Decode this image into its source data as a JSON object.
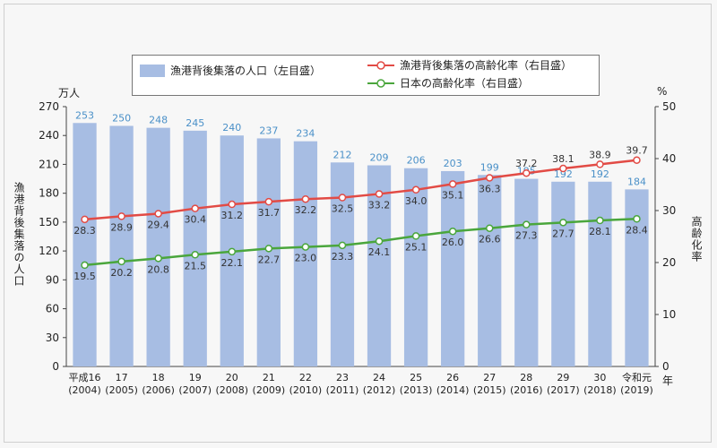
{
  "chart_data": {
    "type": "bar",
    "categories": [
      {
        "era": "平成16",
        "year": "(2004)"
      },
      {
        "era": "17",
        "year": "(2005)"
      },
      {
        "era": "18",
        "year": "(2006)"
      },
      {
        "era": "19",
        "year": "(2007)"
      },
      {
        "era": "20",
        "year": "(2008)"
      },
      {
        "era": "21",
        "year": "(2009)"
      },
      {
        "era": "22",
        "year": "(2010)"
      },
      {
        "era": "23",
        "year": "(2011)"
      },
      {
        "era": "24",
        "year": "(2012)"
      },
      {
        "era": "25",
        "year": "(2013)"
      },
      {
        "era": "26",
        "year": "(2014)"
      },
      {
        "era": "27",
        "year": "(2015)"
      },
      {
        "era": "28",
        "year": "(2016)"
      },
      {
        "era": "29",
        "year": "(2017)"
      },
      {
        "era": "30",
        "year": "(2018)"
      },
      {
        "era": "令和元",
        "year": "(2019)"
      }
    ],
    "series": [
      {
        "name": "漁港背後集落の人口（左目盛）",
        "type": "bar",
        "axis": "left",
        "color": "#a7bde3",
        "label_color": "#4a90c8",
        "values": [
          253,
          250,
          248,
          245,
          240,
          237,
          234,
          212,
          209,
          206,
          203,
          199,
          195,
          192,
          192,
          184
        ]
      },
      {
        "name": "漁港背後集落の高齢化率（右目盛）",
        "type": "line",
        "axis": "right",
        "color": "#e24b45",
        "values": [
          28.3,
          28.9,
          29.4,
          30.4,
          31.2,
          31.7,
          32.2,
          32.5,
          33.2,
          34.0,
          35.1,
          36.3,
          37.2,
          38.1,
          38.9,
          39.7
        ]
      },
      {
        "name": "日本の高齢化率（右目盛）",
        "type": "line",
        "axis": "right",
        "color": "#4aa63c",
        "values": [
          19.5,
          20.2,
          20.8,
          21.5,
          22.1,
          22.7,
          23.0,
          23.3,
          24.1,
          25.1,
          26.0,
          26.6,
          27.3,
          27.7,
          28.1,
          28.4
        ]
      }
    ],
    "ylabel_left": "漁港背後集落の人口",
    "ylabel_right": "高齢化率",
    "unit_left": "万人",
    "unit_right": "%",
    "xunit": "年",
    "ylim_left": [
      0,
      270
    ],
    "yticks_left": [
      0,
      30,
      60,
      90,
      120,
      150,
      180,
      210,
      240,
      270
    ],
    "ylim_right": [
      0,
      50
    ],
    "yticks_right": [
      0,
      10,
      20,
      30,
      40,
      50
    ],
    "grid": false,
    "legend": "top-center"
  }
}
